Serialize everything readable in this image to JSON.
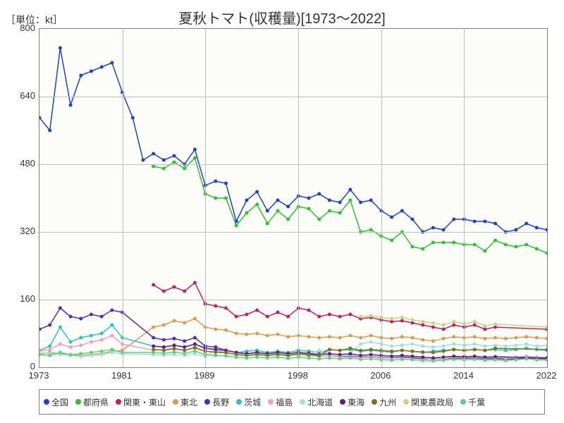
{
  "chart": {
    "type": "line",
    "unit_label": "［単位：kt］",
    "title": "夏秋トマト(収穫量)[1973～2022]",
    "title_fontsize": 20,
    "label_fontsize": 13,
    "legend_fontsize": 12,
    "background_color": "#fcfcf9",
    "border_color": "#808080",
    "grid_color": "#c0c0c0",
    "xlim": [
      1973,
      2022
    ],
    "ylim": [
      0,
      800
    ],
    "ytick_step": 160,
    "yticks": [
      0,
      160,
      320,
      480,
      640,
      800
    ],
    "xticks": [
      1973,
      1981,
      1989,
      1998,
      2006,
      2014,
      2022
    ],
    "marker_radius": 2.5,
    "line_width": 1.5,
    "series": [
      {
        "name": "全国",
        "color": "#2040d0",
        "x": [
          1973,
          1974,
          1975,
          1976,
          1977,
          1978,
          1979,
          1980,
          1981,
          1982,
          1983,
          1984,
          1985,
          1986,
          1987,
          1988,
          1989,
          1990,
          1991,
          1992,
          1993,
          1994,
          1995,
          1996,
          1997,
          1998,
          1999,
          2000,
          2001,
          2002,
          2003,
          2004,
          2005,
          2006,
          2007,
          2008,
          2009,
          2010,
          2011,
          2012,
          2013,
          2014,
          2015,
          2016,
          2017,
          2018,
          2019,
          2020,
          2021,
          2022
        ],
        "y": [
          590,
          560,
          755,
          620,
          690,
          700,
          710,
          720,
          650,
          590,
          490,
          505,
          490,
          500,
          480,
          515,
          430,
          440,
          435,
          345,
          395,
          415,
          370,
          395,
          380,
          405,
          400,
          410,
          395,
          390,
          420,
          390,
          395,
          370,
          355,
          370,
          350,
          320,
          330,
          325,
          350,
          350,
          345,
          345,
          340,
          320,
          325,
          340,
          330,
          325
        ]
      },
      {
        "name": "都府県",
        "color": "#30c030",
        "x": [
          1984,
          1985,
          1986,
          1987,
          1988,
          1989,
          1990,
          1991,
          1992,
          1993,
          1994,
          1995,
          1996,
          1997,
          1998,
          1999,
          2000,
          2001,
          2002,
          2003,
          2004,
          2005,
          2006,
          2007,
          2008,
          2009,
          2010,
          2011,
          2012,
          2013,
          2014,
          2015,
          2016,
          2017,
          2018,
          2019,
          2020,
          2021,
          2022
        ],
        "y": [
          475,
          470,
          485,
          470,
          495,
          410,
          400,
          400,
          335,
          365,
          385,
          340,
          370,
          350,
          380,
          375,
          350,
          370,
          365,
          395,
          320,
          325,
          310,
          300,
          320,
          285,
          280,
          295,
          295,
          295,
          290,
          290,
          275,
          300,
          290,
          285,
          290,
          280,
          270
        ]
      },
      {
        "name": "関東・東山",
        "color": "#c02060",
        "x": [
          1984,
          1985,
          1986,
          1987,
          1988,
          1989,
          1990,
          1991,
          1992,
          1993,
          1994,
          1995,
          1996,
          1997,
          1998,
          1999,
          2000,
          2001,
          2002,
          2003,
          2004,
          2005,
          2006,
          2007,
          2008,
          2009,
          2010,
          2011,
          2012,
          2013,
          2014,
          2015,
          2016,
          2017,
          2022
        ],
        "y": [
          195,
          180,
          190,
          180,
          200,
          150,
          145,
          140,
          120,
          125,
          135,
          120,
          130,
          120,
          140,
          135,
          120,
          125,
          120,
          125,
          115,
          118,
          112,
          108,
          110,
          105,
          100,
          95,
          90,
          100,
          95,
          100,
          90,
          95,
          90
        ]
      },
      {
        "name": "東北",
        "color": "#d4a050",
        "x": [
          1973,
          1974,
          1975,
          1976,
          1977,
          1978,
          1979,
          1980,
          1981,
          1984,
          1985,
          1986,
          1987,
          1988,
          1989,
          1990,
          1991,
          1992,
          1993,
          1994,
          1995,
          1996,
          1997,
          1998,
          1999,
          2000,
          2001,
          2002,
          2003,
          2004,
          2005,
          2006,
          2007,
          2008,
          2009,
          2010,
          2011,
          2012,
          2013,
          2014,
          2015,
          2016,
          2017,
          2018,
          2019,
          2020,
          2021,
          2022
        ],
        "y": [
          30,
          35,
          32,
          30,
          28,
          30,
          32,
          38,
          40,
          95,
          100,
          110,
          105,
          115,
          95,
          90,
          88,
          80,
          78,
          80,
          75,
          78,
          72,
          75,
          72,
          70,
          72,
          70,
          75,
          70,
          75,
          70,
          68,
          72,
          70,
          65,
          62,
          68,
          72,
          70,
          72,
          68,
          70,
          68,
          70,
          72,
          70,
          68
        ]
      },
      {
        "name": "長野",
        "color": "#5030b0",
        "x": [
          1973,
          1974,
          1975,
          1976,
          1977,
          1978,
          1979,
          1980,
          1981,
          1984,
          1985,
          1986,
          1987,
          1988,
          1989,
          1990,
          1991,
          1992,
          1993,
          1994,
          1995,
          1996,
          1997,
          1998,
          1999,
          2000,
          2001,
          2002,
          2003,
          2004,
          2005,
          2006,
          2007,
          2008,
          2009,
          2010,
          2011,
          2012,
          2013,
          2014,
          2015,
          2016,
          2017,
          2018,
          2019,
          2020,
          2021,
          2022
        ],
        "y": [
          90,
          100,
          140,
          120,
          115,
          125,
          120,
          135,
          130,
          70,
          65,
          68,
          62,
          70,
          50,
          48,
          40,
          35,
          32,
          35,
          30,
          32,
          28,
          30,
          28,
          26,
          28,
          25,
          26,
          24,
          25,
          23,
          22,
          24,
          22,
          20,
          19,
          20,
          22,
          21,
          22,
          20,
          21,
          19,
          20,
          22,
          21,
          20
        ]
      },
      {
        "name": "茨城",
        "color": "#30c0c0",
        "x": [
          1973,
          1974,
          1975,
          1976,
          1977,
          1978,
          1979,
          1980,
          1981,
          1984,
          1985,
          1986,
          1987,
          1988,
          1989,
          1990,
          1991,
          1992,
          1993,
          1994,
          1995,
          1996,
          1997,
          1998,
          1999,
          2000,
          2001,
          2002,
          2003,
          2004,
          2005,
          2006,
          2007,
          2008,
          2009,
          2010,
          2011,
          2012,
          2013,
          2014,
          2015,
          2016,
          2017,
          2018,
          2019,
          2020,
          2021,
          2022
        ],
        "y": [
          40,
          50,
          95,
          60,
          70,
          75,
          80,
          100,
          70,
          50,
          48,
          52,
          48,
          55,
          45,
          42,
          40,
          35,
          38,
          40,
          35,
          38,
          35,
          40,
          38,
          35,
          42,
          40,
          42,
          38,
          40,
          38,
          36,
          40,
          38,
          35,
          38,
          40,
          42,
          40,
          42,
          40,
          42,
          40,
          42,
          45,
          42,
          40
        ]
      },
      {
        "name": "福島",
        "color": "#f0a0c0",
        "x": [
          1973,
          1974,
          1975,
          1976,
          1977,
          1978,
          1979,
          1980,
          1981,
          1984,
          1985,
          1986,
          1987,
          1988,
          1989,
          1990,
          1991,
          1992,
          1993,
          1994,
          1995,
          1996,
          1997,
          1998,
          1999,
          2000,
          2001,
          2002,
          2003,
          2004,
          2005,
          2006,
          2007,
          2008,
          2009,
          2010,
          2011,
          2012,
          2013,
          2014,
          2015,
          2016,
          2017,
          2018,
          2019,
          2020,
          2021,
          2022
        ],
        "y": [
          38,
          42,
          55,
          48,
          52,
          60,
          65,
          75,
          55,
          40,
          42,
          45,
          40,
          48,
          38,
          35,
          34,
          30,
          28,
          30,
          28,
          30,
          27,
          30,
          28,
          26,
          28,
          26,
          28,
          25,
          26,
          24,
          23,
          26,
          24,
          22,
          18,
          20,
          24,
          23,
          24,
          22,
          24,
          22,
          24,
          26,
          24,
          23
        ]
      },
      {
        "name": "北海道",
        "color": "#a0e0e0",
        "x": [
          1973,
          1974,
          1975,
          1976,
          1977,
          1978,
          1979,
          1980,
          1981,
          1984,
          1985,
          1986,
          1987,
          1988,
          1989,
          1990,
          1991,
          1992,
          1993,
          1994,
          1995,
          1996,
          1997,
          1998,
          1999,
          2000,
          2001,
          2002,
          2003,
          2004,
          2005,
          2006,
          2007,
          2008,
          2009,
          2010,
          2011,
          2012,
          2013,
          2014,
          2015,
          2016,
          2017,
          2018,
          2019,
          2020,
          2021,
          2022
        ],
        "y": [
          35,
          32,
          30,
          28,
          25,
          28,
          30,
          35,
          32,
          30,
          28,
          30,
          28,
          32,
          25,
          40,
          35,
          30,
          30,
          32,
          30,
          32,
          30,
          28,
          30,
          40,
          32,
          30,
          32,
          55,
          60,
          55,
          50,
          52,
          55,
          50,
          48,
          50,
          55,
          52,
          55,
          50,
          52,
          50,
          52,
          55,
          50,
          52
        ]
      },
      {
        "name": "東海",
        "color": "#602080",
        "x": [
          1984,
          1985,
          1986,
          1987,
          1988,
          1989,
          1990,
          1991,
          1992,
          1993,
          1994,
          1995,
          1996,
          1997,
          1998,
          1999,
          2000,
          2001,
          2002,
          2003,
          2004,
          2005,
          2006,
          2007,
          2008,
          2009,
          2010,
          2011,
          2012,
          2013,
          2014,
          2015,
          2016,
          2017,
          2022
        ],
        "y": [
          50,
          48,
          52,
          48,
          55,
          45,
          42,
          40,
          35,
          32,
          35,
          32,
          35,
          32,
          35,
          33,
          30,
          32,
          30,
          32,
          28,
          30,
          28,
          26,
          28,
          26,
          24,
          22,
          24,
          26,
          25,
          26,
          24,
          25,
          22
        ]
      },
      {
        "name": "九州",
        "color": "#807020",
        "x": [
          1984,
          1985,
          1986,
          1987,
          1988,
          1989,
          1990,
          1991,
          1992,
          1993,
          1994,
          1995,
          1996,
          1997,
          1998,
          1999,
          2000,
          2001,
          2002,
          2003,
          2004,
          2005,
          2006,
          2007,
          2008,
          2009,
          2010,
          2011,
          2012,
          2013,
          2014,
          2015,
          2016,
          2017,
          2022
        ],
        "y": [
          42,
          40,
          44,
          40,
          46,
          38,
          36,
          35,
          30,
          28,
          30,
          28,
          30,
          28,
          32,
          30,
          28,
          42,
          40,
          45,
          40,
          42,
          40,
          38,
          40,
          38,
          36,
          35,
          38,
          42,
          40,
          42,
          40,
          45,
          42
        ]
      },
      {
        "name": "関東農政局",
        "color": "#d0d080",
        "x": [
          2004,
          2005,
          2006,
          2007,
          2008,
          2009,
          2010,
          2011,
          2012,
          2013,
          2014,
          2015,
          2016,
          2017,
          2022
        ],
        "y": [
          120,
          122,
          118,
          115,
          118,
          112,
          108,
          105,
          100,
          108,
          103,
          108,
          98,
          102,
          95
        ]
      },
      {
        "name": "千葉",
        "color": "#60d080",
        "x": [
          1973,
          1974,
          1975,
          1976,
          1977,
          1978,
          1979,
          1980,
          1981,
          1984,
          1985,
          1986,
          1987,
          1988,
          1989,
          1990,
          1991,
          1992,
          1993,
          1994,
          1995,
          1996,
          1997,
          1998,
          1999,
          2000,
          2001,
          2002,
          2003,
          2004,
          2005,
          2006,
          2007,
          2008,
          2009,
          2010,
          2011,
          2012,
          2013,
          2014,
          2015,
          2016,
          2017,
          2018,
          2019,
          2020,
          2021,
          2022
        ],
        "y": [
          30,
          28,
          35,
          30,
          32,
          35,
          38,
          42,
          35,
          35,
          33,
          36,
          33,
          38,
          30,
          28,
          27,
          24,
          22,
          24,
          22,
          24,
          21,
          24,
          22,
          20,
          22,
          20,
          22,
          19,
          20,
          18,
          17,
          19,
          18,
          16,
          15,
          17,
          19,
          18,
          19,
          17,
          18,
          16,
          18,
          20,
          18,
          17
        ]
      }
    ]
  }
}
